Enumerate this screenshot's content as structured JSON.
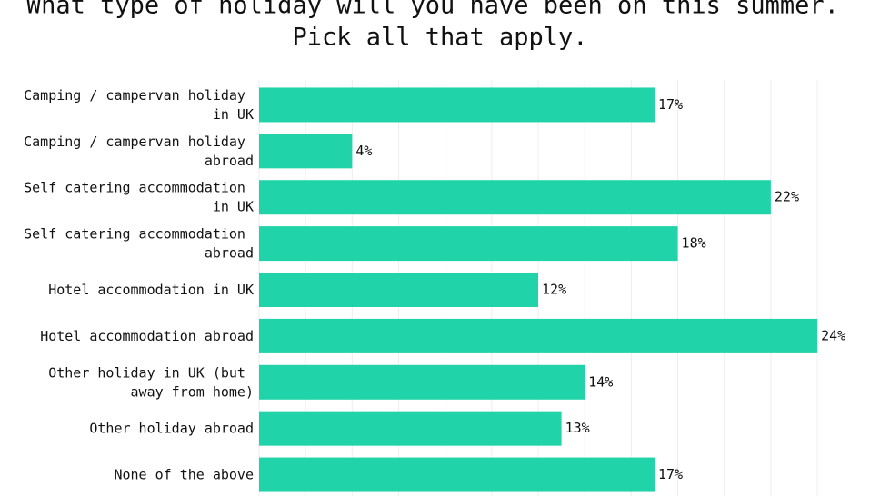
{
  "chart_data": {
    "type": "barh",
    "title": "What type of holiday will you have been on this summer. Pick all that apply.",
    "categories": [
      "Camping / campervan holiday in UK",
      "Camping / campervan holiday abroad",
      "Self catering accommodation in UK",
      "Self catering accommodation abroad",
      "Hotel accommodation in UK",
      "Hotel accommodation abroad",
      "Other holiday in UK (but away from home)",
      "Other holiday abroad",
      "None of the above"
    ],
    "values": [
      17,
      4,
      22,
      18,
      12,
      24,
      14,
      13,
      17
    ],
    "value_labels": [
      "17%",
      "4%",
      "22%",
      "18%",
      "12%",
      "24%",
      "14%",
      "13%",
      "17%"
    ],
    "color": "#20d3a8",
    "xlim": [
      0,
      25.6
    ],
    "xticks": [
      0,
      2,
      4,
      6,
      8,
      10,
      12,
      14,
      16,
      18,
      20,
      22,
      24
    ],
    "grid": true
  }
}
